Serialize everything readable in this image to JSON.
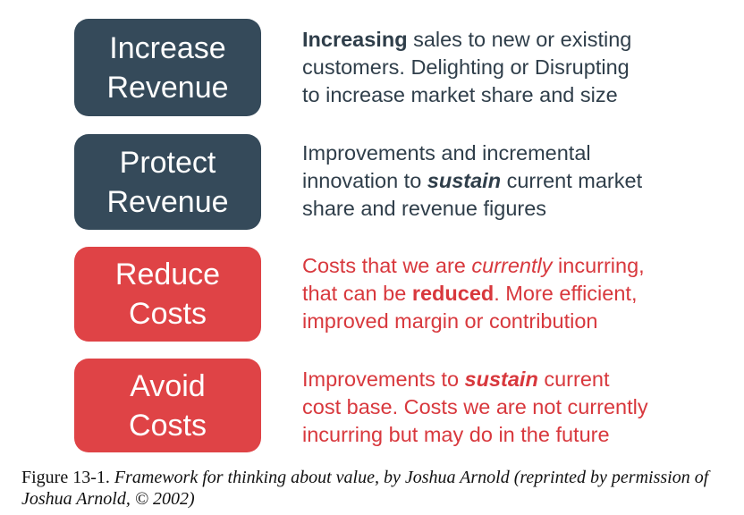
{
  "rows": [
    {
      "box_line1": "Increase",
      "box_line2": "Revenue",
      "line1_bold": "Increasing",
      "line1_rest": " sales to new or existing",
      "line2": "customers. Delighting or Disrupting",
      "line3": "to increase market share and size"
    },
    {
      "box_line1": "Protect",
      "box_line2": "Revenue",
      "line1": "Improvements and incremental",
      "line2_pre": "innovation to ",
      "line2_bi": "sustain",
      "line2_post": " current market",
      "line3": "share and revenue figures"
    },
    {
      "box_line1": "Reduce",
      "box_line2": "Costs",
      "line1_pre": "Costs that we are ",
      "line1_it": "currently",
      "line1_post": " incurring,",
      "line2_pre": "that can be ",
      "line2_bold": "reduced",
      "line2_post": ". More efficient,",
      "line3": "improved margin or contribution"
    },
    {
      "box_line1": "Avoid",
      "box_line2": "Costs",
      "line1_pre": "Improvements to ",
      "line1_bi": "sustain",
      "line1_post": " current",
      "line2": "cost base. Costs we are not currently",
      "line3": "incurring but may do in the future"
    }
  ],
  "colors": {
    "revenue_box": "#354a5a",
    "cost_box": "#df4346",
    "revenue_text": "#2f3e4a",
    "cost_text": "#d8383d"
  },
  "caption": {
    "label": "Figure 13-1.",
    "text": "Framework for thinking about value, by Joshua Arnold (reprinted by permission of Joshua Arnold, © 2002)"
  }
}
